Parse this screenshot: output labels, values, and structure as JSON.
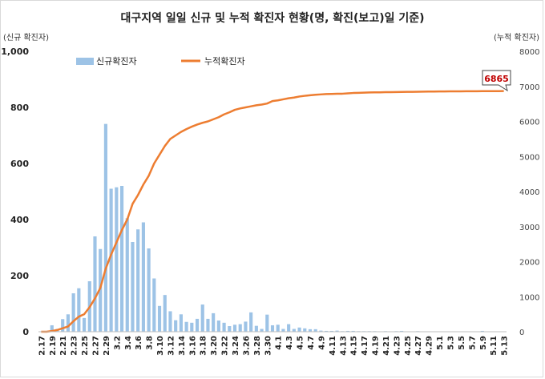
{
  "chart_data": {
    "type": "bar+line",
    "title": "대구지역 일일 신규 및 누적 확진자 현황(명, 확진(보고)일 기준)",
    "y_left_label": "(신규 확진자)",
    "y_right_label": "(누적 확진자)",
    "y_left_ticks": [
      "0",
      "200",
      "400",
      "600",
      "800",
      "1,000"
    ],
    "y_right_ticks": [
      "0",
      "1000",
      "2000",
      "3000",
      "4000",
      "5000",
      "6000",
      "7000",
      "8000"
    ],
    "ylim_left": [
      0,
      1000
    ],
    "ylim_right": [
      0,
      8000
    ],
    "dates": [
      "2.17",
      "2.18",
      "2.19",
      "2.20",
      "2.21",
      "2.22",
      "2.23",
      "2.24",
      "2.25",
      "2.26",
      "2.27",
      "2.28",
      "2.29",
      "3.1",
      "3.2",
      "3.3",
      "3.4",
      "3.5",
      "3.6",
      "3.7",
      "3.8",
      "3.9",
      "3.10",
      "3.11",
      "3.12",
      "3.13",
      "3.14",
      "3.15",
      "3.16",
      "3.17",
      "3.18",
      "3.19",
      "3.20",
      "3.21",
      "3.22",
      "3.23",
      "3.24",
      "3.25",
      "3.26",
      "3.27",
      "3.28",
      "3.29",
      "3.30",
      "3.31",
      "4.1",
      "4.2",
      "4.3",
      "4.4",
      "4.5",
      "4.6",
      "4.7",
      "4.8",
      "4.9",
      "4.10",
      "4.11",
      "4.12",
      "4.13",
      "4.14",
      "4.15",
      "4.16",
      "4.17",
      "4.18",
      "4.19",
      "4.20",
      "4.21",
      "4.22",
      "4.23",
      "4.24",
      "4.25",
      "4.26",
      "4.27",
      "4.28",
      "4.29",
      "4.30",
      "5.1",
      "5.2",
      "5.3",
      "5.4",
      "5.5",
      "5.6",
      "5.7",
      "5.8",
      "5.9",
      "5.10",
      "5.11",
      "5.12",
      "5.13"
    ],
    "x_tick_labels": [
      "2.17",
      "2.19",
      "2.21",
      "2.23",
      "2.25",
      "2.27",
      "2.29",
      "3.2",
      "3.4",
      "3.6",
      "3.8",
      "3.10",
      "3.12",
      "3.14",
      "3.16",
      "3.18",
      "3.20",
      "3.22",
      "3.24",
      "3.26",
      "3.28",
      "3.30",
      "4.1",
      "4.3",
      "4.5",
      "4.7",
      "4.9",
      "4.11",
      "4.13",
      "4.15",
      "4.17",
      "4.19",
      "4.21",
      "4.23",
      "4.25",
      "4.27",
      "4.29",
      "5.1",
      "5.3",
      "5.5",
      "5.7",
      "5.9",
      "5.11",
      "5.13"
    ],
    "series": [
      {
        "name": "신규확진자",
        "type": "bar",
        "axis": "left",
        "color": "#9dc3e6",
        "values": [
          1,
          0,
          23,
          10,
          45,
          62,
          137,
          155,
          49,
          180,
          340,
          295,
          741,
          510,
          515,
          520,
          405,
          320,
          365,
          390,
          297,
          190,
          92,
          131,
          73,
          41,
          62,
          35,
          32,
          46,
          97,
          46,
          66,
          40,
          32,
          20,
          25,
          27,
          36,
          69,
          21,
          10,
          61,
          23,
          25,
          10,
          27,
          10,
          15,
          12,
          9,
          9,
          4,
          3,
          3,
          4,
          2,
          3,
          3,
          2,
          2,
          2,
          2,
          1,
          2,
          1,
          2,
          3,
          1,
          1,
          2,
          1,
          1,
          1,
          1,
          1,
          0,
          1,
          1,
          0,
          1,
          1,
          3,
          0,
          1,
          1,
          1
        ]
      },
      {
        "name": "누적확진자",
        "type": "line",
        "axis": "right",
        "color": "#ed7d31",
        "values": [
          0,
          1,
          20,
          50,
          100,
          150,
          300,
          430,
          500,
          700,
          950,
          1250,
          1800,
          2200,
          2550,
          2900,
          3200,
          3650,
          3900,
          4200,
          4450,
          4800,
          5050,
          5300,
          5500,
          5600,
          5700,
          5780,
          5850,
          5910,
          5960,
          6000,
          6060,
          6120,
          6200,
          6260,
          6330,
          6370,
          6400,
          6430,
          6460,
          6480,
          6510,
          6580,
          6600,
          6630,
          6660,
          6680,
          6710,
          6730,
          6745,
          6760,
          6770,
          6780,
          6784,
          6788,
          6790,
          6800,
          6810,
          6815,
          6820,
          6825,
          6828,
          6830,
          6833,
          6835,
          6838,
          6840,
          6842,
          6844,
          6846,
          6848,
          6850,
          6852,
          6853,
          6855,
          6856,
          6857,
          6858,
          6859,
          6860,
          6861,
          6862,
          6863,
          6864,
          6864,
          6865
        ]
      }
    ],
    "annotation": "6865",
    "legend_position": "top-left",
    "grid": false
  }
}
